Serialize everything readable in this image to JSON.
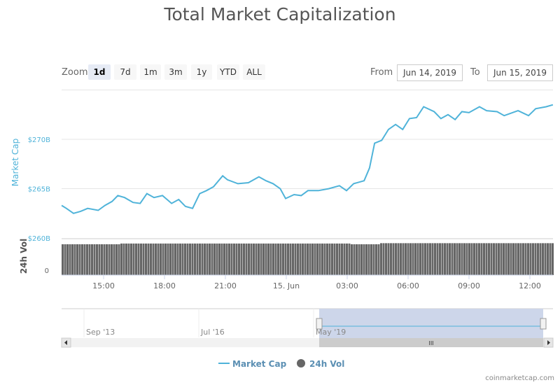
{
  "chart_data": {
    "type": "line",
    "title": "Total Market Capitalization",
    "ylabel": "Market Cap",
    "ylabel2": "24h Vol",
    "y_ticks": [
      "$260B",
      "$265B",
      "$270B"
    ],
    "ylim": [
      260,
      275
    ],
    "y2_ticks": [
      "0"
    ],
    "x_ticks": [
      "15:00",
      "18:00",
      "21:00",
      "15. Jun",
      "03:00",
      "06:00",
      "09:00",
      "12:00"
    ],
    "grid": true,
    "legend_position": "bottom",
    "series": [
      {
        "name": "Market Cap",
        "color": "#4fb3d9",
        "x": [
          "Jun 14 12:56",
          "Jun 14 13:10",
          "Jun 14 13:31",
          "Jun 14 13:52",
          "Jun 14 14:13",
          "Jun 14 14:44",
          "Jun 14 15:04",
          "Jun 14 15:25",
          "Jun 14 15:42",
          "Jun 14 16:02",
          "Jun 14 16:27",
          "Jun 14 16:48",
          "Jun 14 17:08",
          "Jun 14 17:29",
          "Jun 14 17:54",
          "Jun 14 18:21",
          "Jun 14 18:42",
          "Jun 14 19:02",
          "Jun 14 19:23",
          "Jun 14 19:44",
          "Jun 14 20:04",
          "Jun 14 20:25",
          "Jun 14 20:52",
          "Jun 14 21:06",
          "Jun 14 21:37",
          "Jun 14 22:08",
          "Jun 14 22:39",
          "Jun 14 23:00",
          "Jun 14 23:21",
          "Jun 14 23:42",
          "Jun 14 23:58",
          "Jun 15 00:23",
          "Jun 15 00:44",
          "Jun 15 01:04",
          "Jun 15 01:35",
          "Jun 15 02:06",
          "Jun 15 02:37",
          "Jun 15 02:58",
          "Jun 15 03:19",
          "Jun 15 03:50",
          "Jun 15 04:06",
          "Jun 15 04:21",
          "Jun 15 04:42",
          "Jun 15 05:02",
          "Jun 15 05:23",
          "Jun 15 05:44",
          "Jun 15 06:04",
          "Jun 15 06:25",
          "Jun 15 06:46",
          "Jun 15 07:17",
          "Jun 15 07:37",
          "Jun 15 07:58",
          "Jun 15 08:19",
          "Jun 15 08:39",
          "Jun 15 09:00",
          "Jun 15 09:31",
          "Jun 15 09:52",
          "Jun 15 10:23",
          "Jun 15 10:44",
          "Jun 15 11:25",
          "Jun 15 11:56",
          "Jun 15 12:17",
          "Jun 15 12:48",
          "Jun 15 13:08"
        ],
        "values": [
          263.3,
          263.0,
          262.5,
          262.7,
          263.0,
          262.8,
          263.3,
          263.7,
          264.3,
          264.1,
          263.6,
          263.5,
          264.5,
          264.1,
          264.3,
          263.5,
          263.9,
          263.2,
          263.0,
          264.5,
          264.8,
          265.2,
          266.3,
          265.9,
          265.5,
          265.6,
          266.2,
          265.8,
          265.5,
          265.0,
          264.0,
          264.4,
          264.3,
          264.8,
          264.8,
          265.0,
          265.3,
          264.8,
          265.5,
          265.8,
          267.1,
          269.6,
          269.9,
          271.0,
          271.5,
          271.0,
          272.1,
          272.2,
          273.3,
          272.8,
          272.1,
          272.5,
          272.0,
          272.8,
          272.7,
          273.3,
          272.9,
          272.8,
          272.4,
          272.9,
          272.4,
          273.1,
          273.3,
          273.5
        ]
      },
      {
        "name": "24h Vol",
        "color": "#666666",
        "type": "bar",
        "relative_level": 0.82
      }
    ]
  },
  "zoom": {
    "label": "Zoom",
    "buttons": [
      "1d",
      "7d",
      "1m",
      "3m",
      "1y",
      "YTD",
      "ALL"
    ],
    "active": "1d"
  },
  "range": {
    "from_label": "From",
    "from": "Jun 14, 2019",
    "to_label": "To",
    "to": "Jun 15, 2019"
  },
  "navigator": {
    "labels": [
      "Sep '13",
      "Jul '16",
      "May '19"
    ],
    "scroll_grip": "III"
  },
  "watermark": "coinmarketcap.com"
}
